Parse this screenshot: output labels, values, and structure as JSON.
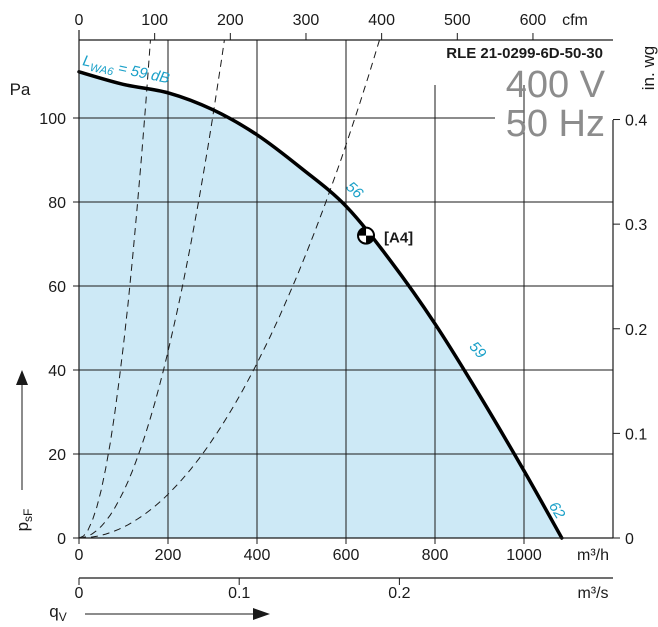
{
  "chart_data": {
    "type": "line",
    "model": "RLE 21-0299-6D-50-30",
    "voltage": "400 V",
    "frequency": "50 Hz",
    "operating_point_label": "[A4]",
    "sound_power_label": "L_WA6 = 59 dB",
    "axes": {
      "x_bottom": {
        "unit": "m³/h",
        "range": [
          0,
          1100
        ],
        "ticks": [
          0,
          200,
          400,
          600,
          800,
          1000
        ]
      },
      "x_top": {
        "unit": "cfm",
        "ticks": [
          0,
          100,
          200,
          300,
          400,
          500,
          600
        ]
      },
      "x_secondary": {
        "unit": "m³/s",
        "ticks": [
          0,
          0.1,
          0.2
        ]
      },
      "y_left": {
        "unit": "Pa",
        "range": [
          0,
          115
        ],
        "ticks": [
          0,
          20,
          40,
          60,
          80,
          100
        ]
      },
      "y_right": {
        "unit": "in. wg",
        "ticks": [
          0,
          0.1,
          0.2,
          0.3,
          0.4
        ]
      },
      "y_quantity": "p_sF",
      "x_quantity": "q_V"
    },
    "grid": true,
    "series": [
      {
        "points": [
          [
            0,
            111
          ],
          [
            100,
            108
          ],
          [
            200,
            106
          ],
          [
            300,
            102
          ],
          [
            400,
            96
          ],
          [
            500,
            88
          ],
          [
            600,
            79
          ],
          [
            700,
            66
          ],
          [
            800,
            51
          ],
          [
            900,
            34
          ],
          [
            1000,
            16
          ],
          [
            1085,
            0
          ]
        ]
      }
    ],
    "operating_point": {
      "x": 645,
      "y": 72
    },
    "sound_level_marks": [
      {
        "label": "56",
        "x": 612,
        "y": 82
      },
      {
        "label": "59",
        "x": 888,
        "y": 44
      },
      {
        "label": "62",
        "x": 1065,
        "y": 6
      }
    ],
    "system_curves": [
      {
        "k": 0.0046
      },
      {
        "k": 0.00111
      },
      {
        "k": 0.00026
      }
    ],
    "colors": {
      "fill": "#cde9f6",
      "curve": "#000000",
      "accent": "#1aa0c8",
      "big_text": "#8c8c8c"
    }
  }
}
